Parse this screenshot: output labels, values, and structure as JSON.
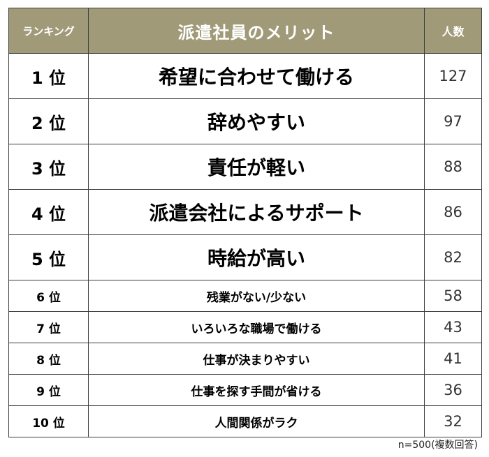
{
  "theme": {
    "header_background": "#a09a79",
    "header_text": "#ffffff",
    "border": "#3c3c3c",
    "body_background": "#ffffff"
  },
  "table": {
    "headers": {
      "rank": "ランキング",
      "item": "派遣社員のメリット",
      "count": "人数"
    },
    "rows": [
      {
        "rank": "1 位",
        "item": "希望に合わせて働ける",
        "count": "127"
      },
      {
        "rank": "2 位",
        "item": "辞めやすい",
        "count": "97"
      },
      {
        "rank": "3 位",
        "item": "責任が軽い",
        "count": "88"
      },
      {
        "rank": "4 位",
        "item": "派遣会社によるサポート",
        "count": "86"
      },
      {
        "rank": "5 位",
        "item": "時給が高い",
        "count": "82"
      },
      {
        "rank": "6 位",
        "item": "残業がない/少ない",
        "count": "58"
      },
      {
        "rank": "7 位",
        "item": "いろいろな職場で働ける",
        "count": "43"
      },
      {
        "rank": "8 位",
        "item": "仕事が決まりやすい",
        "count": "41"
      },
      {
        "rank": "9 位",
        "item": "仕事を探す手間が省ける",
        "count": "36"
      },
      {
        "rank": "10 位",
        "item": "人間関係がラク",
        "count": "32"
      }
    ]
  },
  "footnote": "n=500(複数回答)"
}
